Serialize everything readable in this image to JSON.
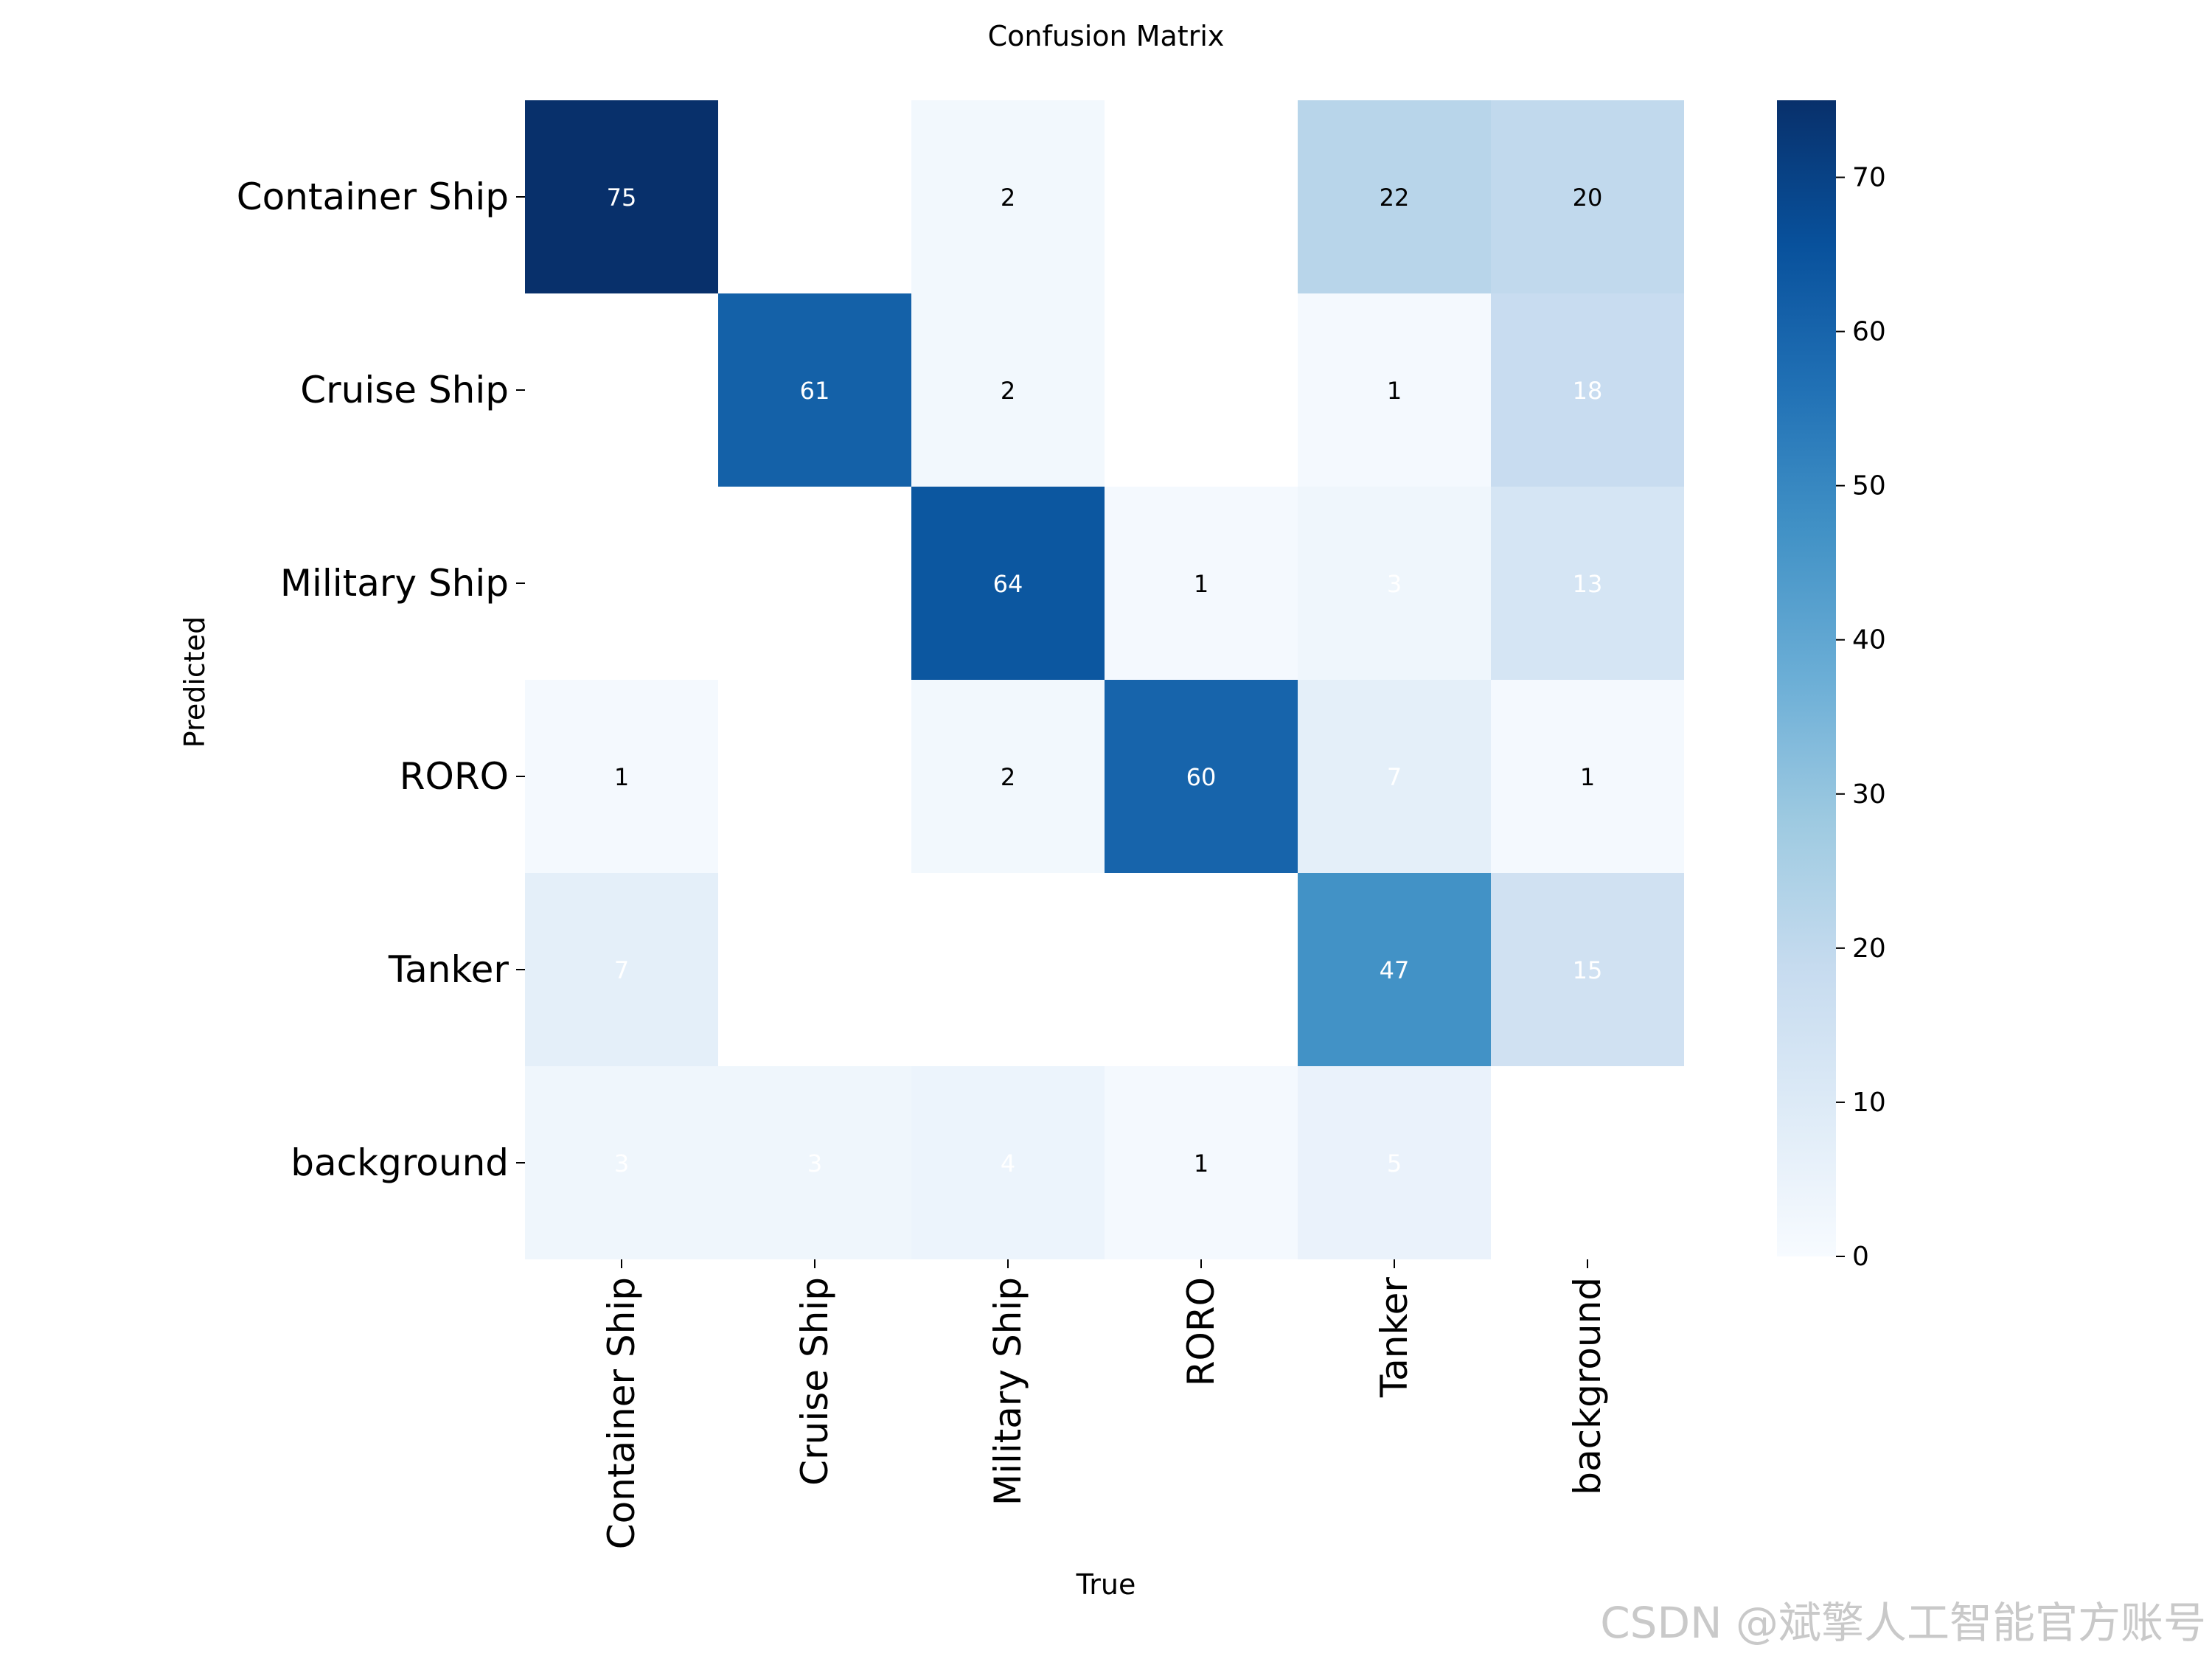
{
  "chart_data": {
    "type": "heatmap",
    "title": "Confusion Matrix",
    "xlabel": "True",
    "ylabel": "Predicted",
    "x_categories": [
      "Container Ship",
      "Cruise Ship",
      "Military Ship",
      "RORO",
      "Tanker",
      "background"
    ],
    "y_categories": [
      "Container Ship",
      "Cruise Ship",
      "Military Ship",
      "RORO",
      "Tanker",
      "background"
    ],
    "matrix": [
      [
        75,
        null,
        2,
        null,
        22,
        20
      ],
      [
        null,
        61,
        2,
        null,
        1,
        18
      ],
      [
        null,
        null,
        64,
        1,
        3,
        13
      ],
      [
        1,
        null,
        2,
        60,
        7,
        1
      ],
      [
        7,
        null,
        null,
        null,
        47,
        15
      ],
      [
        3,
        3,
        4,
        1,
        5,
        null
      ]
    ],
    "colorbar": {
      "min": 0,
      "max": 75,
      "ticks": [
        0,
        10,
        20,
        30,
        40,
        50,
        60,
        70
      ]
    },
    "colormap": "Blues",
    "colors": {
      "empty_cell": "#ffffff",
      "background": "#ffffff",
      "text_dark": "#000000",
      "text_light": "#ffffff"
    }
  },
  "watermark": "CSDN @斌擎人工智能官方账号"
}
